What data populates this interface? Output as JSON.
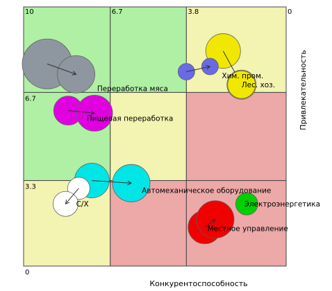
{
  "chart_data": {
    "type": "bubble-matrix",
    "title": "",
    "xlabel": "Конкурентоспособность",
    "ylabel": "Привлекательность",
    "x_reversed": true,
    "xlim": [
      10,
      0
    ],
    "ylim": [
      0,
      10
    ],
    "x_ticks": [
      {
        "value": 10,
        "label": "10"
      },
      {
        "value": 6.7,
        "label": "6.7"
      },
      {
        "value": 3.8,
        "label": "3.8"
      },
      {
        "value": 0,
        "label": "0"
      }
    ],
    "y_ticks": [
      {
        "value": 6.7,
        "label": "6.7"
      },
      {
        "value": 3.3,
        "label": "3.3"
      },
      {
        "value": 0,
        "label": "0"
      }
    ],
    "x_bounds": [
      10,
      6.7,
      3.8,
      0
    ],
    "y_bounds": [
      10,
      6.7,
      3.3,
      0
    ],
    "cell_colors": [
      [
        "#b0f0a4",
        "#b0f0a4",
        "#f3f3b2"
      ],
      [
        "#b0f0a4",
        "#f3f3b2",
        "#eda8a8"
      ],
      [
        "#f3f3b2",
        "#eda8a8",
        "#eda8a8"
      ]
    ],
    "grid_line_color": "#444444",
    "bubbles": [
      {
        "name": "Переработка мяса",
        "color": "#8e96a0",
        "positions": [
          {
            "x": 9.1,
            "y": 7.8,
            "r": 36
          },
          {
            "x": 8.0,
            "y": 7.4,
            "r": 27
          }
        ],
        "label": "Переработка мяса"
      },
      {
        "name": "Пищевая переработка",
        "color": "#e000e0",
        "positions": [
          {
            "x": 8.3,
            "y": 6.0,
            "r": 21
          },
          {
            "x": 7.3,
            "y": 5.9,
            "r": 26
          }
        ],
        "label": "Пищевая переработка"
      },
      {
        "name": "Хим. пром.",
        "color": "#f0e800",
        "positions": [
          {
            "x": 2.4,
            "y": 8.3,
            "r": 25
          },
          {
            "x": 1.7,
            "y": 7.0,
            "r": 21
          }
        ],
        "label": "Хим. пром."
      },
      {
        "name": "Хим. пром. small",
        "color": "#6a6ae6",
        "positions": [
          {
            "x": 3.8,
            "y": 7.5,
            "r": 12
          },
          {
            "x": 2.9,
            "y": 7.7,
            "r": 12
          }
        ]
      },
      {
        "name": "Лес. хоз.",
        "color": "#f0e800",
        "positions": [
          {
            "x": 1.7,
            "y": 7.0,
            "r": 20
          }
        ],
        "label": "Лес. хоз."
      },
      {
        "name": "Автомеханическое оборудование",
        "color": "#00e6e6",
        "positions": [
          {
            "x": 7.4,
            "y": 3.3,
            "r": 25
          },
          {
            "x": 5.9,
            "y": 3.2,
            "r": 27
          }
        ],
        "label": "Автомеханическое оборудование"
      },
      {
        "name": "С/Х",
        "color": "#ffffff",
        "positions": [
          {
            "x": 7.9,
            "y": 3.0,
            "r": 16
          },
          {
            "x": 8.4,
            "y": 2.4,
            "r": 18
          }
        ],
        "label": "С/Х"
      },
      {
        "name": "Электроэнергетика",
        "color": "#00d000",
        "positions": [
          {
            "x": 1.5,
            "y": 2.4,
            "r": 16
          }
        ],
        "label": "Электроэнергетика"
      },
      {
        "name": "Местное управление",
        "color": "#f00000",
        "positions": [
          {
            "x": 3.1,
            "y": 1.5,
            "r": 24
          },
          {
            "x": 2.7,
            "y": 1.8,
            "r": 27
          }
        ],
        "label": "Местное управление"
      }
    ],
    "labels": [
      {
        "text": "Переработка мяса",
        "x": 7.2,
        "y": 6.75
      },
      {
        "text": "Пищевая переработка",
        "x": 7.6,
        "y": 5.6
      },
      {
        "text": "Хим. пром.",
        "x": 2.45,
        "y": 7.25
      },
      {
        "text": "Лес. хоз.",
        "x": 1.7,
        "y": 6.9
      },
      {
        "text": "Автомеханическое оборудование",
        "x": 5.5,
        "y": 2.82
      },
      {
        "text": "С/Х",
        "x": 8.0,
        "y": 2.3
      },
      {
        "text": "Электроэнергетика",
        "x": 1.6,
        "y": 2.3
      },
      {
        "text": "Местное управление",
        "x": 3.0,
        "y": 1.35
      }
    ]
  }
}
